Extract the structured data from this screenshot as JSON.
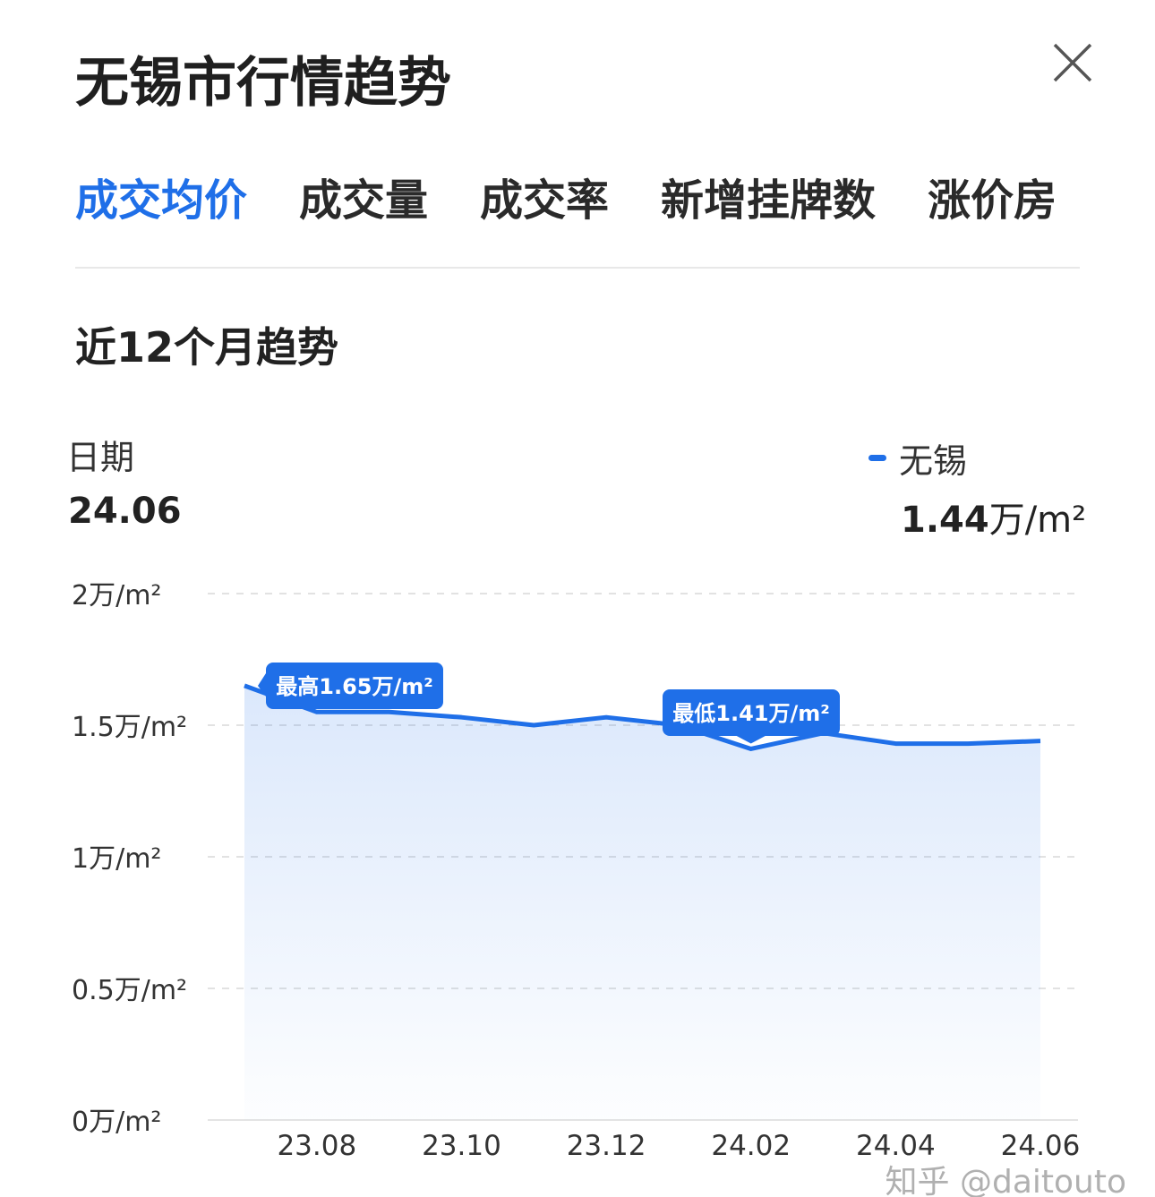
{
  "header": {
    "title": "无锡市行情趋势",
    "close_icon": "close-icon"
  },
  "tabs": [
    {
      "label": "成交均价",
      "active": true
    },
    {
      "label": "成交量"
    },
    {
      "label": "成交率"
    },
    {
      "label": "新增挂牌数"
    },
    {
      "label": "涨价房"
    }
  ],
  "section_title": "近12个月趋势",
  "readout": {
    "date_label": "日期",
    "date_value": "24.06",
    "series_name": "无锡",
    "value_num": "1.44",
    "value_unit": "万/m²"
  },
  "colors": {
    "accent": "#1f6fe8"
  },
  "chart_data": {
    "type": "area",
    "x": [
      "23.07",
      "23.08",
      "23.09",
      "23.10",
      "23.11",
      "23.12",
      "24.01",
      "24.02",
      "24.03",
      "24.04",
      "24.05",
      "24.06"
    ],
    "series": [
      {
        "name": "无锡",
        "values": [
          1.65,
          1.55,
          1.55,
          1.53,
          1.5,
          1.53,
          1.5,
          1.41,
          1.47,
          1.43,
          1.43,
          1.44
        ]
      }
    ],
    "xticks": [
      "23.08",
      "23.10",
      "23.12",
      "24.02",
      "24.04",
      "24.06"
    ],
    "yticks": [
      {
        "v": 0,
        "label": "0万/m²"
      },
      {
        "v": 0.5,
        "label": "0.5万/m²"
      },
      {
        "v": 1,
        "label": "1万/m²"
      },
      {
        "v": 1.5,
        "label": "1.5万/m²"
      },
      {
        "v": 2,
        "label": "2万/m²"
      }
    ],
    "ylim": [
      0,
      2
    ],
    "grid": true,
    "annotations": [
      {
        "x": "23.07",
        "label": "最高1.65万/m²"
      },
      {
        "x": "24.02",
        "label": "最低1.41万/m²"
      }
    ]
  },
  "watermark": "知乎 @daitouto"
}
